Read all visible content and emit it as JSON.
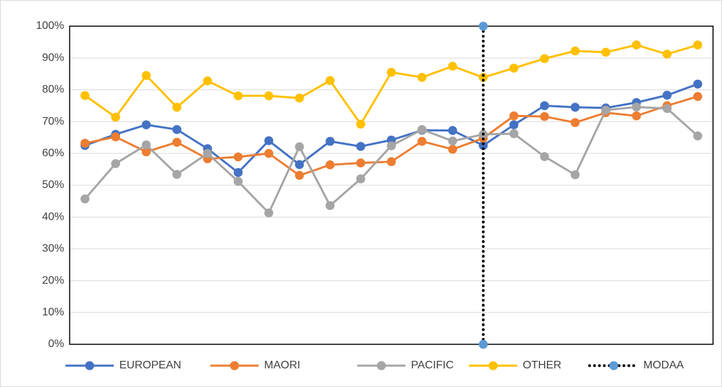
{
  "chart_data": {
    "type": "line",
    "categories": [
      null,
      null,
      null,
      null,
      null,
      null,
      null,
      null,
      null,
      null,
      null,
      null,
      null,
      null,
      null,
      null,
      null,
      null,
      null,
      null,
      null
    ],
    "series": [
      {
        "name": "EUROPEAN",
        "color": "#4472c4",
        "values": [
          62.5,
          66,
          69,
          67.5,
          61.5,
          54,
          64,
          56.5,
          63.8,
          62.2,
          64.2,
          67.3,
          67.2,
          62.5,
          69,
          75,
          74.5,
          74.3,
          76,
          78.3,
          81.8
        ]
      },
      {
        "name": "MAORI",
        "color": "#ed7d31",
        "values": [
          63.2,
          65.2,
          60.5,
          63.5,
          58.3,
          58.9,
          60,
          53.1,
          56.4,
          57,
          57.4,
          63.8,
          61.3,
          64.8,
          71.8,
          71.6,
          69.7,
          72.8,
          71.8,
          75,
          77.9
        ]
      },
      {
        "name": "PACIFIC",
        "color": "#a5a5a5",
        "values": [
          45.7,
          56.8,
          62.7,
          53.4,
          60,
          51.2,
          41.3,
          62.1,
          43.6,
          52,
          62.4,
          67.5,
          63.9,
          66,
          66.2,
          59,
          53.3,
          73.6,
          74.6,
          74.1,
          65.5
        ]
      },
      {
        "name": "OTHER",
        "color": "#ffc000",
        "values": [
          78.2,
          71.4,
          84.5,
          74.5,
          82.8,
          78.1,
          78.1,
          77.4,
          82.9,
          69.2,
          85.5,
          83.9,
          87.4,
          83.9,
          86.8,
          89.8,
          92.2,
          91.8,
          94.1,
          91.2,
          94.1
        ]
      },
      {
        "name": "MODAA",
        "color": "#000000",
        "marker_color": "#5b9bd5",
        "line_style": "dotted",
        "x": [
          13,
          13
        ],
        "values": [
          0,
          100
        ]
      }
    ],
    "ylim": [
      0,
      100
    ],
    "yticks": [
      {
        "value": 0,
        "label": "0%"
      },
      {
        "value": 10,
        "label": "10%"
      },
      {
        "value": 20,
        "label": "20%"
      },
      {
        "value": 30,
        "label": "30%"
      },
      {
        "value": 40,
        "label": "40%"
      },
      {
        "value": 50,
        "label": "50%"
      },
      {
        "value": 60,
        "label": "60%"
      },
      {
        "value": 70,
        "label": "70%"
      },
      {
        "value": 80,
        "label": "80%"
      },
      {
        "value": 90,
        "label": "90%"
      },
      {
        "value": 100,
        "label": "100%"
      }
    ],
    "grid": true,
    "legend": "bottom"
  }
}
